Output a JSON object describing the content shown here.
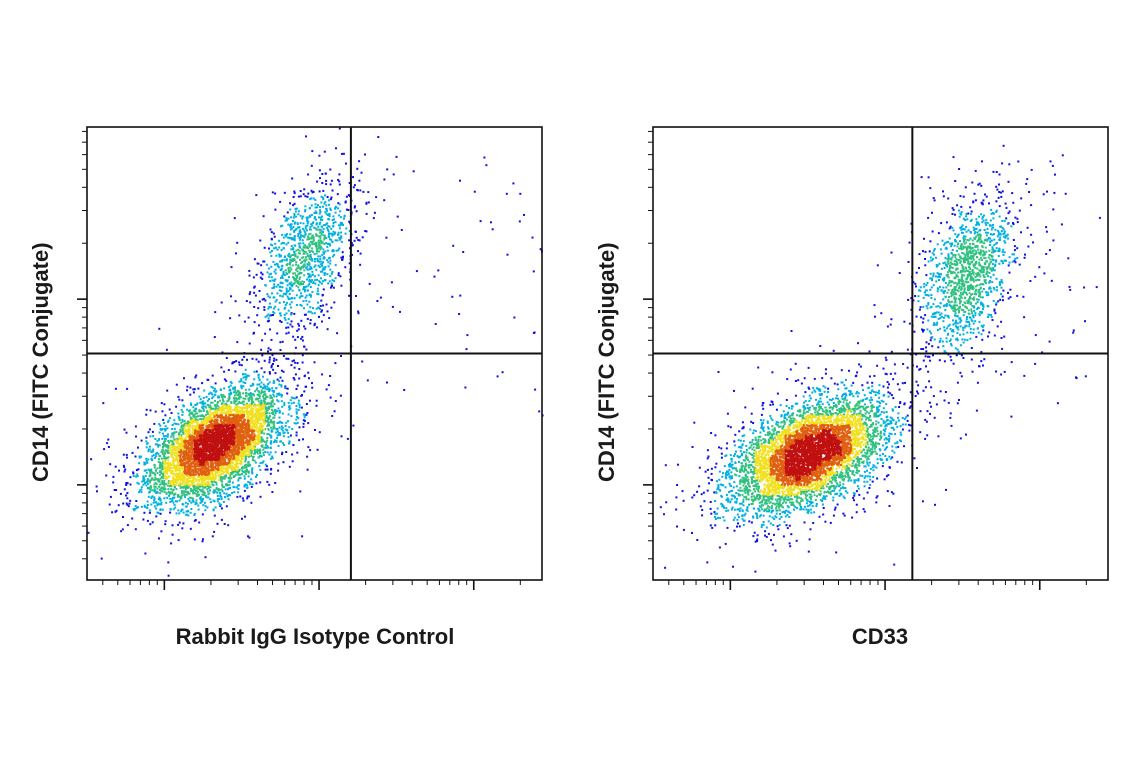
{
  "chart_data": [
    {
      "type": "scatter",
      "subtype": "flow-cytometry density dot plot with quadrant gates",
      "xlabel": "Rabbit IgG Isotype Control",
      "ylabel": "CD14 (FITC Conjugate)",
      "scale": "log",
      "tick_labels_shown": false,
      "x_major_decades": 3,
      "y_major_decades": 2,
      "quadrant_gate": {
        "x": 0.58,
        "y": 0.5
      },
      "color_scale": [
        "#1010e0",
        "#00b0e0",
        "#30c080",
        "#f0e020",
        "#e06010",
        "#c01010"
      ],
      "populations": [
        {
          "name": "",
          "cx": 0.28,
          "cy": 0.3,
          "sx": 0.07,
          "sy": 0.06,
          "rho": 0.55,
          "n": 5200
        },
        {
          "name": "",
          "cx": 0.48,
          "cy": 0.72,
          "sx": 0.05,
          "sy": 0.08,
          "rho": 0.5,
          "n": 1100
        }
      ],
      "sparse_events": 60
    },
    {
      "type": "scatter",
      "subtype": "flow-cytometry density dot plot with quadrant gates",
      "xlabel": "CD33",
      "ylabel": "CD14 (FITC Conjugate)",
      "scale": "log",
      "tick_labels_shown": false,
      "x_major_decades": 3,
      "y_major_decades": 2,
      "quadrant_gate": {
        "x": 0.57,
        "y": 0.5
      },
      "color_scale": [
        "#1010e0",
        "#00b0e0",
        "#30c080",
        "#f0e020",
        "#e06010",
        "#c01010"
      ],
      "populations": [
        {
          "name": "",
          "cx": 0.34,
          "cy": 0.28,
          "sx": 0.08,
          "sy": 0.06,
          "rho": 0.5,
          "n": 5200
        },
        {
          "name": "",
          "cx": 0.69,
          "cy": 0.68,
          "sx": 0.05,
          "sy": 0.08,
          "rho": 0.4,
          "n": 1300
        }
      ],
      "sparse_events": 50
    }
  ]
}
